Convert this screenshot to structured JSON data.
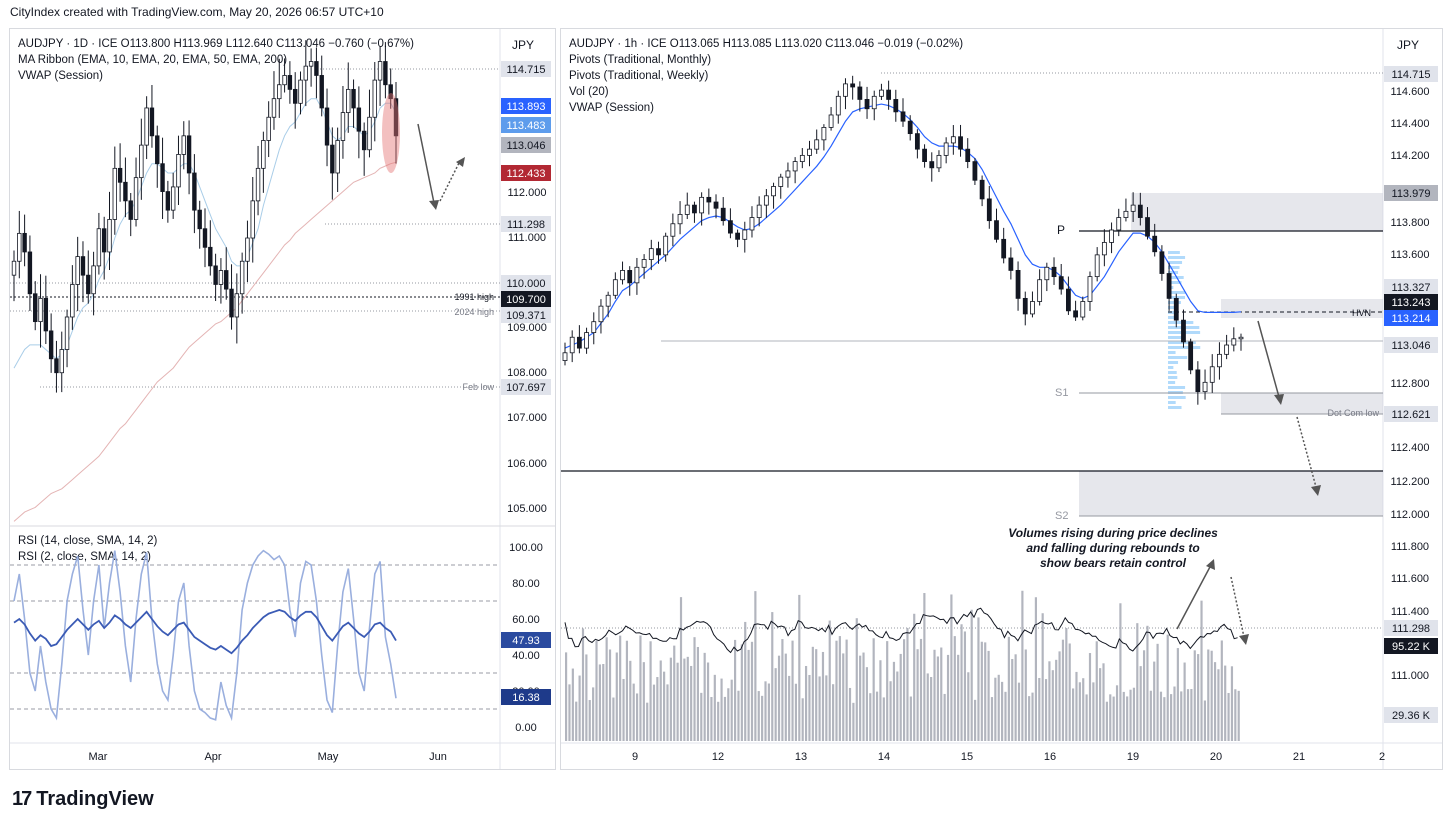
{
  "header": {
    "text": "CityIndex created with TradingView.com, May 20, 2026 06:57 UTC+10"
  },
  "footer": {
    "brand": "TradingView",
    "logo_glyph": "17"
  },
  "colors": {
    "bull": "#131722",
    "bear": "#131722",
    "ema10": "#a9cde8",
    "ema200": "#e4b4b4",
    "vwap": "#2962ff",
    "rsi14": "#3b5bb5",
    "rsi2": "#9aafde",
    "volume": "#b2b5be"
  },
  "left_chart": {
    "unit_label": "JPY",
    "legend": [
      "AUDJPY · 1D · ICE  O113.800  H113.969  L112.640  C113.046  −0.760 (−0.67%)",
      "MA Ribbon (EMA, 10, EMA, 20, EMA, 50, EMA, 200)",
      "VWAP (Session)"
    ],
    "y_ticks": [
      "112.000",
      "111.000",
      "109.000",
      "108.000",
      "107.000",
      "106.000",
      "105.000"
    ],
    "price_labels": [
      {
        "value": "114.715",
        "bg": "#e0e3eb",
        "fg": "#131722"
      },
      {
        "value": "113.893",
        "bg": "#2962ff",
        "fg": "#ffffff"
      },
      {
        "value": "113.483",
        "bg": "#5d9cec",
        "fg": "#ffffff"
      },
      {
        "value": "113.046",
        "bg": "#b2b5be",
        "fg": "#131722"
      },
      {
        "value": "112.433",
        "bg": "#b22833",
        "fg": "#ffffff"
      },
      {
        "value": "111.298",
        "bg": "#e0e3eb",
        "fg": "#131722"
      },
      {
        "value": "110.000",
        "bg": "#e0e3eb",
        "fg": "#131722"
      },
      {
        "value": "109.700",
        "bg": "#131722",
        "fg": "#ffffff"
      },
      {
        "value": "109.371",
        "bg": "#e0e3eb",
        "fg": "#131722"
      },
      {
        "value": "107.697",
        "bg": "#e0e3eb",
        "fg": "#131722"
      }
    ],
    "level_labels": [
      {
        "text": "1991 high",
        "value": 109.7
      },
      {
        "text": "2024 high",
        "value": 109.371
      },
      {
        "text": "Feb low",
        "value": 107.697
      }
    ],
    "x_ticks": [
      "Mar",
      "Apr",
      "May",
      "Jun"
    ]
  },
  "rsi_panel": {
    "legend": [
      "RSI (14, close, SMA, 14, 2)",
      "RSI (2, close, SMA, 14, 2)"
    ],
    "y_ticks": [
      "100.00",
      "80.00",
      "60.00",
      "40.00",
      "20.00",
      "0.00"
    ],
    "labels": [
      {
        "value": "47.93",
        "bg": "#2a4a9f"
      },
      {
        "value": "16.38",
        "bg": "#1e3a8a"
      }
    ]
  },
  "right_chart": {
    "unit_label": "JPY",
    "legend": [
      "AUDJPY · 1h · ICE  O113.065  H113.085  L113.020  C113.046  −0.019 (−0.02%)",
      "Pivots (Traditional, Monthly)",
      "Pivots (Traditional, Weekly)",
      "Vol (20)",
      "VWAP (Session)"
    ],
    "y_ticks": [
      "114.600",
      "114.400",
      "114.200",
      "113.800",
      "113.600",
      "112.800",
      "112.400",
      "112.200",
      "112.000",
      "111.800",
      "111.600",
      "111.400",
      "111.000"
    ],
    "price_labels": [
      {
        "value": "114.715",
        "bg": "#e0e3eb",
        "fg": "#131722"
      },
      {
        "value": "113.979",
        "bg": "#b2b5be",
        "fg": "#131722"
      },
      {
        "value": "113.327",
        "bg": "#e0e3eb",
        "fg": "#131722"
      },
      {
        "value": "113.243",
        "bg": "#131722",
        "fg": "#ffffff"
      },
      {
        "value": "113.214",
        "bg": "#2962ff",
        "fg": "#ffffff"
      },
      {
        "value": "113.046",
        "bg": "#e0e3eb",
        "fg": "#131722"
      },
      {
        "value": "112.621",
        "bg": "#e0e3eb",
        "fg": "#131722"
      },
      {
        "value": "111.298",
        "bg": "#e0e3eb",
        "fg": "#131722"
      },
      {
        "value": "95.22 K",
        "bg": "#131722",
        "fg": "#ffffff"
      },
      {
        "value": "29.36 K",
        "bg": "#e0e3eb",
        "fg": "#131722"
      }
    ],
    "pivot_labels": [
      "P",
      "S1",
      "S2"
    ],
    "hvn_label": "HVN",
    "dotcom_label": "Dot Com low",
    "annotation": "Volumes rising during price declines and falling during rebounds to show bears retain control",
    "x_ticks": [
      "9",
      "12",
      "13",
      "14",
      "15",
      "16",
      "19",
      "20",
      "21",
      "2"
    ]
  },
  "chart_data": [
    {
      "type": "candlestick",
      "symbol": "AUDJPY",
      "timeframe": "1D",
      "ylim": [
        104.6,
        115.3
      ],
      "x_ticks": [
        "Mar",
        "Apr",
        "May",
        "Jun"
      ],
      "close": [
        110.3,
        110.9,
        110.5,
        109.6,
        109.0,
        109.5,
        108.8,
        108.2,
        107.9,
        108.4,
        109.1,
        109.8,
        110.4,
        110.0,
        109.6,
        110.2,
        111.0,
        110.5,
        111.2,
        112.3,
        112.0,
        111.6,
        111.2,
        112.1,
        112.8,
        113.6,
        113.0,
        112.4,
        111.8,
        111.4,
        111.9,
        112.6,
        113.0,
        112.2,
        111.4,
        111.0,
        110.6,
        110.2,
        109.8,
        110.1,
        109.7,
        109.1,
        109.6,
        110.3,
        110.8,
        111.6,
        112.3,
        112.9,
        113.4,
        113.8,
        114.1,
        114.3,
        114.0,
        113.7,
        114.2,
        114.5,
        114.6,
        114.3,
        113.6,
        112.8,
        112.2,
        112.9,
        113.5,
        114.0,
        113.6,
        113.1,
        112.7,
        113.4,
        114.2,
        114.6,
        114.1,
        113.8,
        113.0
      ],
      "ema200": [
        104.7,
        104.8,
        104.9,
        104.95,
        105.0,
        105.1,
        105.2,
        105.3,
        105.35,
        105.4,
        105.5,
        105.6,
        105.7,
        105.8,
        105.9,
        106.0,
        106.1,
        106.25,
        106.4,
        106.55,
        106.7,
        106.8,
        106.95,
        107.1,
        107.25,
        107.4,
        107.55,
        107.7,
        107.8,
        107.9,
        108.0,
        108.15,
        108.3,
        108.45,
        108.55,
        108.65,
        108.75,
        108.85,
        108.95,
        109.0,
        109.1,
        109.2,
        109.3,
        109.45,
        109.6,
        109.75,
        109.9,
        110.05,
        110.2,
        110.35,
        110.5,
        110.65,
        110.75,
        110.9,
        111.0,
        111.1,
        111.2,
        111.3,
        111.4,
        111.5,
        111.6,
        111.7,
        111.8,
        111.9,
        112.0,
        112.05,
        112.1,
        112.15,
        112.2,
        112.3,
        112.35,
        112.4,
        112.43
      ],
      "ema10": [
        108.0,
        108.2,
        108.4,
        108.5,
        108.5,
        108.5,
        108.4,
        108.3,
        108.2,
        108.3,
        108.5,
        108.8,
        109.1,
        109.3,
        109.4,
        109.6,
        109.9,
        110.1,
        110.4,
        110.8,
        111.1,
        111.3,
        111.4,
        111.6,
        111.9,
        112.2,
        112.4,
        112.4,
        112.3,
        112.2,
        112.2,
        112.3,
        112.4,
        112.4,
        112.2,
        111.9,
        111.6,
        111.3,
        111.0,
        110.8,
        110.6,
        110.3,
        110.2,
        110.2,
        110.4,
        110.7,
        111.0,
        111.5,
        111.9,
        112.3,
        112.7,
        113.0,
        113.2,
        113.3,
        113.5,
        113.7,
        113.8,
        113.8,
        113.6,
        113.3,
        113.0,
        112.9,
        113.0,
        113.2,
        113.2,
        113.1,
        113.0,
        113.1,
        113.3,
        113.6,
        113.7,
        113.7,
        113.5
      ]
    },
    {
      "type": "line",
      "name": "RSI (14, close, SMA, 14, 2)",
      "ylim": [
        0,
        100
      ],
      "rsi14": [
        58,
        60,
        57,
        52,
        48,
        51,
        49,
        45,
        46,
        50,
        54,
        57,
        60,
        57,
        54,
        57,
        59,
        55,
        58,
        62,
        60,
        57,
        55,
        58,
        61,
        64,
        60,
        56,
        53,
        51,
        54,
        57,
        58,
        54,
        50,
        48,
        46,
        44,
        43,
        45,
        43,
        41,
        44,
        48,
        51,
        55,
        58,
        61,
        63,
        64,
        65,
        64,
        61,
        59,
        62,
        64,
        64,
        61,
        56,
        51,
        48,
        52,
        56,
        58,
        55,
        52,
        50,
        53,
        57,
        58,
        55,
        53,
        48
      ],
      "rsi2": [
        70,
        85,
        60,
        30,
        20,
        45,
        25,
        10,
        5,
        35,
        70,
        85,
        95,
        65,
        40,
        70,
        90,
        55,
        80,
        98,
        75,
        45,
        25,
        60,
        85,
        97,
        60,
        35,
        20,
        15,
        40,
        70,
        80,
        45,
        20,
        10,
        8,
        5,
        4,
        25,
        12,
        5,
        30,
        65,
        80,
        90,
        95,
        98,
        96,
        93,
        95,
        90,
        65,
        50,
        80,
        92,
        90,
        70,
        40,
        15,
        8,
        45,
        75,
        88,
        60,
        30,
        20,
        55,
        85,
        92,
        50,
        35,
        16
      ]
    },
    {
      "type": "candlestick",
      "symbol": "AUDJPY",
      "timeframe": "1h",
      "ylim": [
        111.9,
        114.75
      ],
      "x_ticks": [
        "9",
        "12",
        "13",
        "14",
        "15",
        "16",
        "19",
        "20",
        "21",
        "2"
      ],
      "close": [
        112.95,
        113.05,
        112.98,
        113.08,
        113.15,
        113.25,
        113.32,
        113.42,
        113.48,
        113.4,
        113.5,
        113.55,
        113.62,
        113.58,
        113.7,
        113.78,
        113.84,
        113.9,
        113.85,
        113.95,
        113.92,
        113.88,
        113.8,
        113.72,
        113.68,
        113.74,
        113.82,
        113.9,
        113.96,
        114.02,
        114.08,
        114.12,
        114.18,
        114.22,
        114.26,
        114.32,
        114.4,
        114.48,
        114.6,
        114.68,
        114.66,
        114.58,
        114.52,
        114.6,
        114.64,
        114.58,
        114.5,
        114.44,
        114.36,
        114.26,
        114.18,
        114.14,
        114.22,
        114.3,
        114.34,
        114.26,
        114.18,
        114.06,
        113.94,
        113.8,
        113.68,
        113.56,
        113.48,
        113.3,
        113.2,
        113.28,
        113.42,
        113.5,
        113.44,
        113.36,
        113.22,
        113.18,
        113.28,
        113.44,
        113.58,
        113.66,
        113.74,
        113.82,
        113.86,
        113.9,
        113.82,
        113.7,
        113.6,
        113.46,
        113.3,
        113.16,
        113.02,
        112.84,
        112.7,
        112.76,
        112.86,
        112.94,
        113.0,
        113.04,
        113.05
      ],
      "vwap": [
        112.98,
        113.0,
        113.02,
        113.05,
        113.08,
        113.14,
        113.2,
        113.28,
        113.35,
        113.38,
        113.42,
        113.46,
        113.5,
        113.54,
        113.58,
        113.63,
        113.68,
        113.72,
        113.76,
        113.8,
        113.82,
        113.83,
        113.82,
        113.79,
        113.76,
        113.74,
        113.75,
        113.78,
        113.82,
        113.86,
        113.9,
        113.95,
        114.0,
        114.05,
        114.1,
        114.15,
        114.21,
        114.28,
        114.36,
        114.44,
        114.5,
        114.52,
        114.53,
        114.54,
        114.55,
        114.54,
        114.52,
        114.49,
        114.45,
        114.4,
        114.34,
        114.3,
        114.28,
        114.28,
        114.28,
        114.27,
        114.24,
        114.2,
        114.13,
        114.04,
        113.95,
        113.86,
        113.78,
        113.68,
        113.58,
        113.52,
        113.5,
        113.5,
        113.48,
        113.44,
        113.38,
        113.32,
        113.3,
        113.32,
        113.38,
        113.44,
        113.52,
        113.6,
        113.66,
        113.72,
        113.72,
        113.7,
        113.66,
        113.6,
        113.52,
        113.44,
        113.36,
        113.28,
        113.22,
        113.21,
        113.21,
        113.21,
        113.21,
        113.21,
        113.214
      ]
    }
  ]
}
